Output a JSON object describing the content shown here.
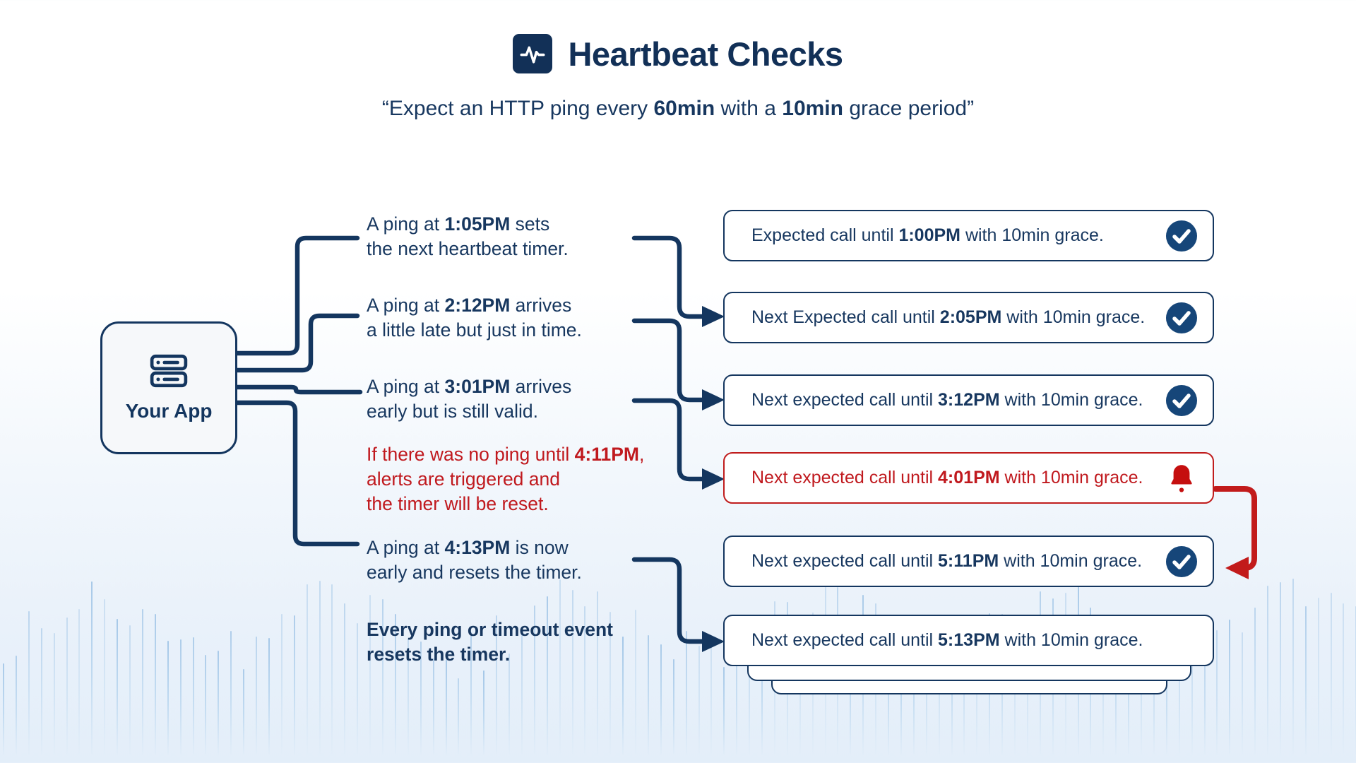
{
  "colors": {
    "navy": "#14365f",
    "navy_text": "#17375f",
    "red": "#c0191e",
    "red_border": "#c01d1d",
    "badge_navy": "#164679",
    "bell_red": "#c50f0f",
    "bar_blue": "#7fb0dd"
  },
  "title": {
    "icon": "activity-icon",
    "text": "Heartbeat Checks"
  },
  "subtitle": {
    "lines": [
      [
        {
          "t": "“Expect an HTTP ping every "
        },
        {
          "t": "60min",
          "b": true
        },
        {
          "t": " with a "
        },
        {
          "t": "10min",
          "b": true
        },
        {
          "t": " grace period”"
        }
      ]
    ]
  },
  "app_node": {
    "icon": "server-icon",
    "label": "Your App"
  },
  "events": [
    {
      "name": "ping-1",
      "tone": "navy",
      "lines": [
        [
          {
            "t": "A ping at "
          },
          {
            "t": "1:05PM",
            "b": true
          },
          {
            "t": " sets"
          }
        ],
        [
          {
            "t": "the next heartbeat timer."
          }
        ]
      ]
    },
    {
      "name": "ping-2",
      "tone": "navy",
      "lines": [
        [
          {
            "t": "A ping at "
          },
          {
            "t": "2:12PM",
            "b": true
          },
          {
            "t": " arrives"
          }
        ],
        [
          {
            "t": "a little late but just in time."
          }
        ]
      ]
    },
    {
      "name": "ping-3",
      "tone": "navy",
      "lines": [
        [
          {
            "t": "A ping at "
          },
          {
            "t": "3:01PM",
            "b": true
          },
          {
            "t": " arrives"
          }
        ],
        [
          {
            "t": "early but is still valid."
          }
        ]
      ]
    },
    {
      "name": "timeout",
      "tone": "red",
      "lines": [
        [
          {
            "t": "If there was no ping until "
          },
          {
            "t": "4:11PM",
            "b": true
          },
          {
            "t": ","
          }
        ],
        [
          {
            "t": "alerts are triggered and"
          }
        ],
        [
          {
            "t": "the timer will be reset."
          }
        ]
      ]
    },
    {
      "name": "ping-4",
      "tone": "navy",
      "lines": [
        [
          {
            "t": "A ping at "
          },
          {
            "t": "4:13PM",
            "b": true
          },
          {
            "t": " is now"
          }
        ],
        [
          {
            "t": "early and resets the timer."
          }
        ]
      ]
    },
    {
      "name": "summary",
      "tone": "navy",
      "lines": [
        [
          {
            "t": "Every ping or timeout event",
            "b": true
          }
        ],
        [
          {
            "t": "resets the timer.",
            "b": true
          }
        ]
      ]
    }
  ],
  "states": [
    {
      "name": "state-1",
      "tone": "ok",
      "icon": "check-circle-icon",
      "lines": [
        [
          {
            "t": "Expected call until "
          },
          {
            "t": "1:00PM",
            "b": true
          },
          {
            "t": " with 10min grace."
          }
        ]
      ]
    },
    {
      "name": "state-2",
      "tone": "ok",
      "icon": "check-circle-icon",
      "lines": [
        [
          {
            "t": "Next Expected call until "
          },
          {
            "t": "2:05PM",
            "b": true
          },
          {
            "t": " with 10min grace."
          }
        ]
      ]
    },
    {
      "name": "state-3",
      "tone": "ok",
      "icon": "check-circle-icon",
      "lines": [
        [
          {
            "t": "Next expected call until "
          },
          {
            "t": "3:12PM",
            "b": true
          },
          {
            "t": " with 10min grace."
          }
        ]
      ]
    },
    {
      "name": "state-4",
      "tone": "alert",
      "icon": "bell-icon",
      "lines": [
        [
          {
            "t": "Next expected call until "
          },
          {
            "t": "4:01PM",
            "b": true
          },
          {
            "t": " with 10min grace."
          }
        ]
      ]
    },
    {
      "name": "state-5",
      "tone": "ok",
      "icon": "check-circle-icon",
      "lines": [
        [
          {
            "t": "Next expected call until "
          },
          {
            "t": "5:11PM",
            "b": true
          },
          {
            "t": " with 10min grace."
          }
        ]
      ]
    },
    {
      "name": "state-6",
      "tone": "plain",
      "icon": "none",
      "lines": [
        [
          {
            "t": "Next expected call until "
          },
          {
            "t": "5:13PM",
            "b": true
          },
          {
            "t": " with 10min grace."
          }
        ]
      ]
    }
  ]
}
